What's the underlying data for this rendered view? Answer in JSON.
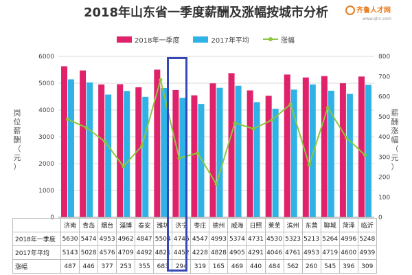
{
  "title": "2018年山东省一季度薪酬及涨幅按城市分析",
  "logo": {
    "name": "齐鲁人才网",
    "url_text": "www.qlrc.com"
  },
  "colors": {
    "bar2018": "#e0226b",
    "bar2017": "#2fb3e6",
    "line": "#8dc63f",
    "highlight": "#3548b6"
  },
  "chart_data": {
    "type": "bar",
    "categories": [
      "济南",
      "青岛",
      "烟台",
      "淄博",
      "泰安",
      "潍坊",
      "济宁",
      "枣庄",
      "德州",
      "威海",
      "日照",
      "莱芜",
      "滨州",
      "东营",
      "聊城",
      "菏泽",
      "临沂"
    ],
    "series": [
      {
        "name": "2018年一季度",
        "type": "bar",
        "axis": "left",
        "values": [
          5630,
          5474,
          4953,
          4962,
          4847,
          5504,
          4746,
          4547,
          4993,
          5374,
          4731,
          4530,
          5323,
          5213,
          5264,
          4996,
          5248
        ]
      },
      {
        "name": "2017年平均",
        "type": "bar",
        "axis": "left",
        "values": [
          5143,
          5028,
          4576,
          4709,
          4492,
          4821,
          4452,
          4228,
          4828,
          4905,
          4291,
          4046,
          4761,
          4953,
          4719,
          4600,
          4939
        ]
      },
      {
        "name": "涨幅",
        "type": "line",
        "axis": "right",
        "values": [
          487,
          446,
          377,
          253,
          355,
          683,
          294,
          319,
          165,
          469,
          440,
          484,
          562,
          260,
          545,
          396,
          309
        ]
      }
    ],
    "ylabel": "岗位薪酬（元）",
    "y2label": "薪酬涨幅（元）",
    "ylim": [
      0,
      6000
    ],
    "y2lim": [
      0,
      800
    ],
    "yticks": [
      "0",
      "1000",
      "2000",
      "3000",
      "4000",
      "5000",
      "6000"
    ],
    "y2ticks": [
      "0",
      "100",
      "200",
      "300",
      "400",
      "500",
      "600",
      "700",
      "800"
    ],
    "legend_position": "top",
    "grid": true,
    "highlight_category": "济宁"
  },
  "table": {
    "row_labels": [
      "2018年一季度",
      "2017年平均",
      "涨幅"
    ]
  }
}
